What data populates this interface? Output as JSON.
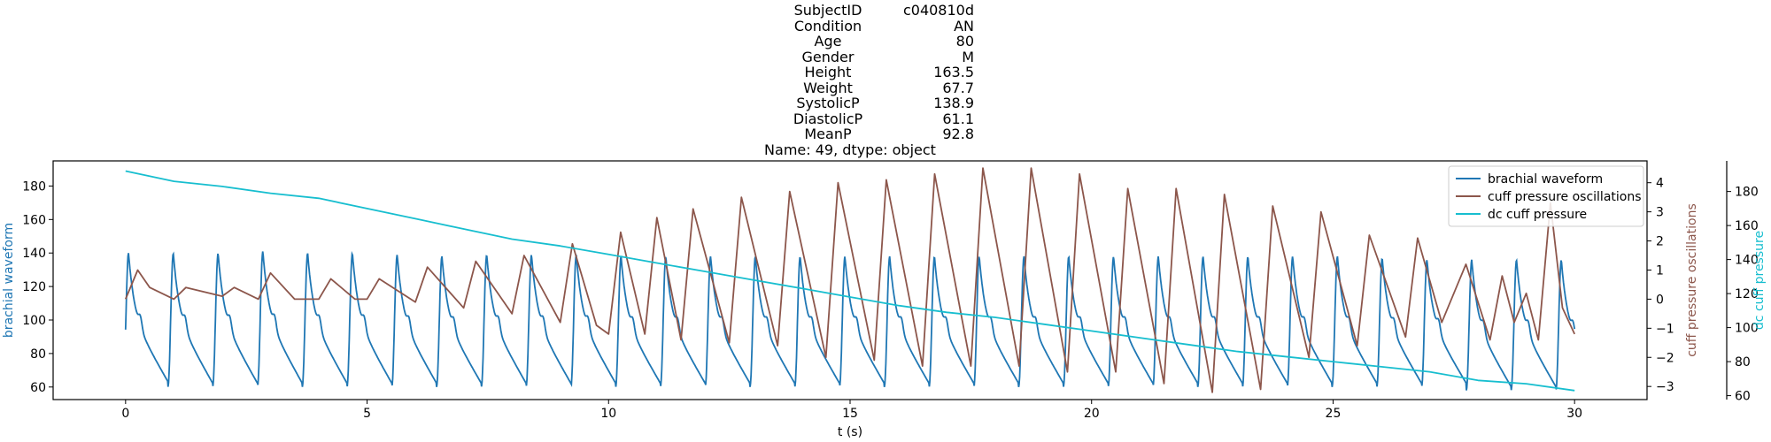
{
  "title": {
    "rows": [
      {
        "key": "SubjectID",
        "value": "c040810d"
      },
      {
        "key": "Condition",
        "value": "AN"
      },
      {
        "key": "Age",
        "value": "80"
      },
      {
        "key": "Gender",
        "value": "M"
      },
      {
        "key": "Height",
        "value": "163.5"
      },
      {
        "key": "Weight",
        "value": "67.7"
      },
      {
        "key": "SystolicP",
        "value": "138.9"
      },
      {
        "key": "DiastolicP",
        "value": "61.1"
      },
      {
        "key": "MeanP",
        "value": "92.8"
      }
    ],
    "footer": "Name: 49, dtype: object"
  },
  "chart_data": {
    "type": "line",
    "xlabel": "t (s)",
    "xlim": [
      -1.5,
      31.5
    ],
    "xticks": [
      0,
      5,
      10,
      15,
      20,
      25,
      30
    ],
    "grid": false,
    "legend_position": "top-right",
    "axes": {
      "left": {
        "label": "brachial waveform",
        "color": "#1f77b4",
        "ylim": [
          52.5,
          195
        ],
        "ticks": [
          60,
          80,
          100,
          120,
          140,
          160,
          180
        ]
      },
      "right1": {
        "label": "cuff pressure oscillations",
        "color": "#8c564b",
        "ylim": [
          -3.45,
          4.75
        ],
        "ticks": [
          -3,
          -2,
          -1,
          0,
          1,
          2,
          3,
          4
        ]
      },
      "right2": {
        "label": "dc cuff pressure",
        "color": "#17becf",
        "ylim": [
          57.7,
          198
        ],
        "ticks": [
          60,
          80,
          100,
          120,
          140,
          160,
          180
        ]
      }
    },
    "series": [
      {
        "name": "brachial waveform",
        "color": "#1f77b4",
        "axis": "left",
        "period_s": 0.927,
        "beat_peaks": [
          140,
          140,
          140,
          141,
          140,
          140,
          139,
          138,
          139,
          139,
          139,
          138,
          138,
          138,
          138,
          138,
          138,
          138,
          138,
          138,
          138,
          138,
          138,
          138,
          138,
          138,
          138,
          138,
          137,
          136,
          136,
          136,
          136
        ],
        "beat_troughs": [
          61,
          60,
          60,
          60,
          60,
          60,
          60,
          60,
          60,
          60,
          60,
          60,
          60,
          60,
          60,
          60,
          60,
          60,
          60,
          60,
          60,
          60,
          60,
          60,
          60,
          60,
          60,
          60,
          60,
          60,
          58,
          58,
          58
        ]
      },
      {
        "name": "cuff pressure oscillations",
        "color": "#8c564b",
        "axis": "right1",
        "points": [
          [
            0.0,
            0.0
          ],
          [
            0.25,
            1.0
          ],
          [
            0.5,
            0.4
          ],
          [
            1.0,
            0.0
          ],
          [
            1.25,
            0.4
          ],
          [
            2.0,
            0.1
          ],
          [
            2.25,
            0.4
          ],
          [
            2.75,
            0.0
          ],
          [
            3.0,
            0.9
          ],
          [
            3.5,
            0.0
          ],
          [
            4.0,
            0.0
          ],
          [
            4.25,
            0.7
          ],
          [
            4.75,
            0.0
          ],
          [
            5.0,
            0.0
          ],
          [
            5.25,
            0.7
          ],
          [
            6.0,
            -0.1
          ],
          [
            6.25,
            1.1
          ],
          [
            7.0,
            -0.3
          ],
          [
            7.25,
            1.3
          ],
          [
            8.0,
            -0.5
          ],
          [
            8.25,
            1.5
          ],
          [
            9.0,
            -0.8
          ],
          [
            9.25,
            1.9
          ],
          [
            9.75,
            -0.9
          ],
          [
            10.0,
            -1.2
          ],
          [
            10.25,
            2.3
          ],
          [
            10.75,
            -1.2
          ],
          [
            11.0,
            2.8
          ],
          [
            11.5,
            -1.4
          ],
          [
            11.75,
            3.1
          ],
          [
            12.5,
            -1.5
          ],
          [
            12.75,
            3.5
          ],
          [
            13.5,
            -1.6
          ],
          [
            13.75,
            3.7
          ],
          [
            14.5,
            -2.0
          ],
          [
            14.75,
            4.0
          ],
          [
            15.5,
            -2.1
          ],
          [
            15.75,
            4.1
          ],
          [
            16.5,
            -2.3
          ],
          [
            16.75,
            4.3
          ],
          [
            17.5,
            -2.3
          ],
          [
            17.75,
            4.5
          ],
          [
            18.5,
            -2.3
          ],
          [
            18.75,
            4.5
          ],
          [
            19.5,
            -2.5
          ],
          [
            19.75,
            4.3
          ],
          [
            20.5,
            -2.5
          ],
          [
            20.75,
            3.8
          ],
          [
            21.5,
            -2.9
          ],
          [
            21.75,
            3.8
          ],
          [
            22.5,
            -3.2
          ],
          [
            22.75,
            3.6
          ],
          [
            23.5,
            -3.1
          ],
          [
            23.75,
            3.2
          ],
          [
            24.5,
            -2.0
          ],
          [
            24.75,
            3.0
          ],
          [
            25.5,
            -1.6
          ],
          [
            25.75,
            2.2
          ],
          [
            26.5,
            -1.3
          ],
          [
            26.75,
            2.1
          ],
          [
            27.25,
            -0.8
          ],
          [
            27.75,
            1.2
          ],
          [
            28.25,
            -1.4
          ],
          [
            28.5,
            0.8
          ],
          [
            28.75,
            -0.8
          ],
          [
            29.0,
            0.2
          ],
          [
            29.25,
            -1.4
          ],
          [
            29.5,
            3.3
          ],
          [
            29.75,
            -0.3
          ],
          [
            30.0,
            -1.2
          ]
        ]
      },
      {
        "name": "dc cuff pressure",
        "color": "#17becf",
        "axis": "right2",
        "points": [
          [
            0.0,
            192
          ],
          [
            1.0,
            186
          ],
          [
            2.0,
            183
          ],
          [
            3.0,
            179
          ],
          [
            4.0,
            176
          ],
          [
            5.0,
            170
          ],
          [
            6.0,
            164
          ],
          [
            7.0,
            158
          ],
          [
            8.0,
            152
          ],
          [
            9.0,
            148
          ],
          [
            10.0,
            143
          ],
          [
            11.0,
            138
          ],
          [
            12.0,
            133
          ],
          [
            13.0,
            128
          ],
          [
            14.0,
            123
          ],
          [
            15.0,
            118
          ],
          [
            16.0,
            113
          ],
          [
            17.0,
            109
          ],
          [
            18.0,
            106
          ],
          [
            19.0,
            102
          ],
          [
            20.0,
            98
          ],
          [
            21.0,
            94
          ],
          [
            22.0,
            90
          ],
          [
            23.0,
            86
          ],
          [
            24.0,
            83
          ],
          [
            25.0,
            80
          ],
          [
            26.0,
            77
          ],
          [
            27.0,
            74
          ],
          [
            28.0,
            69
          ],
          [
            29.0,
            67
          ],
          [
            30.0,
            63
          ]
        ]
      }
    ]
  }
}
